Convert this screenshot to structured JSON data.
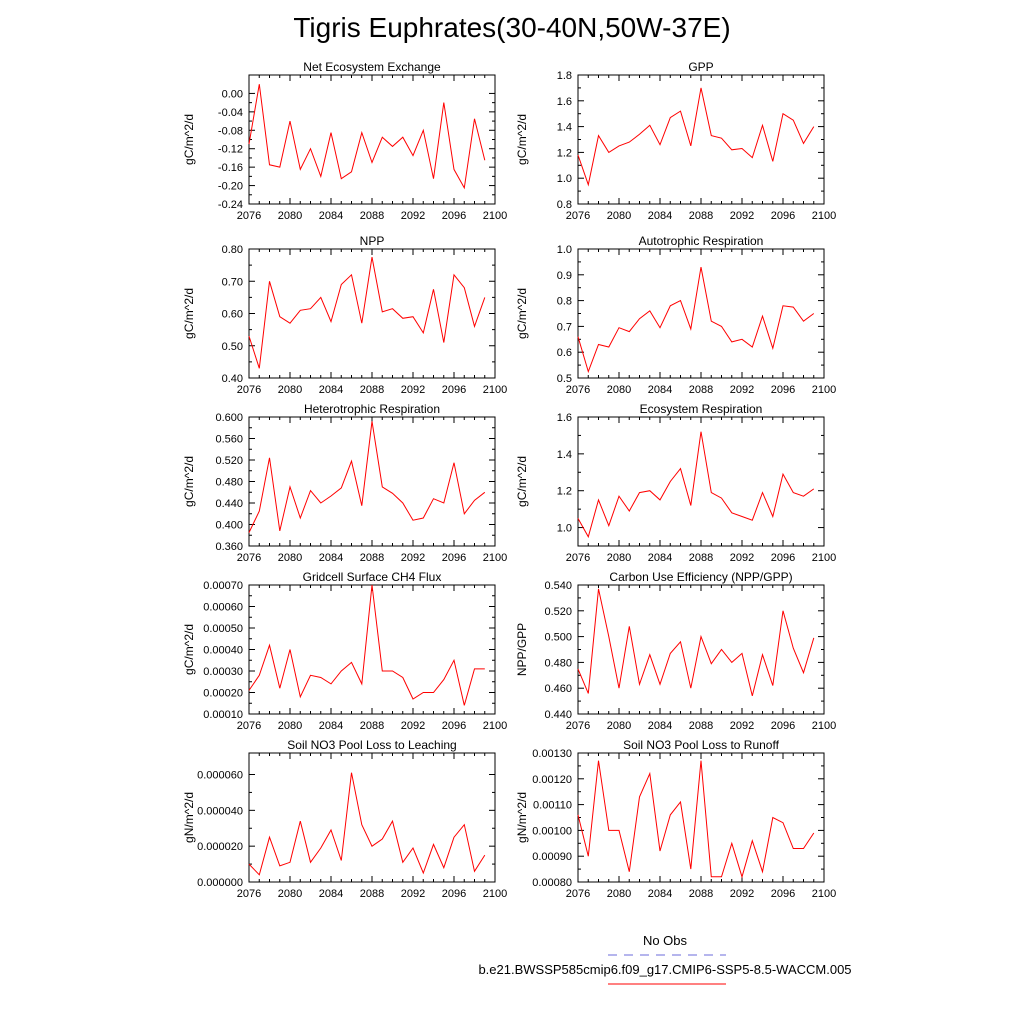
{
  "title": "Tigris Euphrates(30-40N,50W-37E)",
  "colors": {
    "series": "#ff0000",
    "obs": "#6b6bdb",
    "axis": "#000000"
  },
  "legend": {
    "obs_label": "No Obs",
    "model_label": "b.e21.BWSSP585cmip6.f09_g17.CMIP6-SSP5-8.5-WACCM.005"
  },
  "chart_data": [
    {
      "type": "line",
      "title": "Net Ecosystem Exchange",
      "ylabel": "gC/m^2/d",
      "xlim": [
        2076,
        2100
      ],
      "ylim": [
        -0.24,
        0.04
      ],
      "xticks": [
        "2076",
        "2080",
        "2084",
        "2088",
        "2092",
        "2096",
        "2100"
      ],
      "yticks": [
        "0.00",
        "-0.04",
        "-0.08",
        "-0.12",
        "-0.16",
        "-0.20",
        "-0.24"
      ],
      "x": [
        2076,
        2077,
        2078,
        2079,
        2080,
        2081,
        2082,
        2083,
        2084,
        2085,
        2086,
        2087,
        2088,
        2089,
        2090,
        2091,
        2092,
        2093,
        2094,
        2095,
        2096,
        2097,
        2098,
        2099
      ],
      "values": [
        -0.11,
        0.02,
        -0.155,
        -0.16,
        -0.06,
        -0.165,
        -0.12,
        -0.18,
        -0.085,
        -0.185,
        -0.17,
        -0.085,
        -0.15,
        -0.095,
        -0.115,
        -0.095,
        -0.135,
        -0.08,
        -0.185,
        -0.02,
        -0.165,
        -0.205,
        -0.055,
        -0.145
      ]
    },
    {
      "type": "line",
      "title": "GPP",
      "ylabel": "gC/m^2/d",
      "xlim": [
        2076,
        2100
      ],
      "ylim": [
        0.8,
        1.8
      ],
      "xticks": [
        "2076",
        "2080",
        "2084",
        "2088",
        "2092",
        "2096",
        "2100"
      ],
      "yticks": [
        "0.8",
        "1.0",
        "1.2",
        "1.4",
        "1.6",
        "1.8"
      ],
      "x": [
        2076,
        2077,
        2078,
        2079,
        2080,
        2081,
        2082,
        2083,
        2084,
        2085,
        2086,
        2087,
        2088,
        2089,
        2090,
        2091,
        2092,
        2093,
        2094,
        2095,
        2096,
        2097,
        2098,
        2099
      ],
      "values": [
        1.18,
        0.95,
        1.33,
        1.2,
        1.25,
        1.28,
        1.34,
        1.41,
        1.26,
        1.47,
        1.52,
        1.25,
        1.7,
        1.33,
        1.31,
        1.22,
        1.23,
        1.16,
        1.41,
        1.13,
        1.5,
        1.45,
        1.27,
        1.4
      ]
    },
    {
      "type": "line",
      "title": "NPP",
      "ylabel": "gC/m^2/d",
      "xlim": [
        2076,
        2100
      ],
      "ylim": [
        0.4,
        0.8
      ],
      "xticks": [
        "2076",
        "2080",
        "2084",
        "2088",
        "2092",
        "2096",
        "2100"
      ],
      "yticks": [
        "0.40",
        "0.50",
        "0.60",
        "0.70",
        "0.80"
      ],
      "x": [
        2076,
        2077,
        2078,
        2079,
        2080,
        2081,
        2082,
        2083,
        2084,
        2085,
        2086,
        2087,
        2088,
        2089,
        2090,
        2091,
        2092,
        2093,
        2094,
        2095,
        2096,
        2097,
        2098,
        2099
      ],
      "values": [
        0.53,
        0.43,
        0.7,
        0.59,
        0.57,
        0.61,
        0.615,
        0.65,
        0.575,
        0.69,
        0.72,
        0.57,
        0.775,
        0.605,
        0.615,
        0.585,
        0.59,
        0.54,
        0.675,
        0.51,
        0.72,
        0.68,
        0.56,
        0.65
      ]
    },
    {
      "type": "line",
      "title": "Autotrophic Respiration",
      "ylabel": "gC/m^2/d",
      "xlim": [
        2076,
        2100
      ],
      "ylim": [
        0.5,
        1.0
      ],
      "xticks": [
        "2076",
        "2080",
        "2084",
        "2088",
        "2092",
        "2096",
        "2100"
      ],
      "yticks": [
        "0.5",
        "0.6",
        "0.7",
        "0.8",
        "0.9",
        "1.0"
      ],
      "x": [
        2076,
        2077,
        2078,
        2079,
        2080,
        2081,
        2082,
        2083,
        2084,
        2085,
        2086,
        2087,
        2088,
        2089,
        2090,
        2091,
        2092,
        2093,
        2094,
        2095,
        2096,
        2097,
        2098,
        2099
      ],
      "values": [
        0.66,
        0.525,
        0.63,
        0.62,
        0.695,
        0.68,
        0.73,
        0.76,
        0.695,
        0.78,
        0.8,
        0.69,
        0.93,
        0.72,
        0.7,
        0.64,
        0.65,
        0.62,
        0.74,
        0.615,
        0.78,
        0.775,
        0.72,
        0.75
      ]
    },
    {
      "type": "line",
      "title": "Heterotrophic Respiration",
      "ylabel": "gC/m^2/d",
      "xlim": [
        2076,
        2100
      ],
      "ylim": [
        0.36,
        0.6
      ],
      "xticks": [
        "2076",
        "2080",
        "2084",
        "2088",
        "2092",
        "2096",
        "2100"
      ],
      "yticks": [
        "0.360",
        "0.400",
        "0.440",
        "0.480",
        "0.520",
        "0.560",
        "0.600"
      ],
      "x": [
        2076,
        2077,
        2078,
        2079,
        2080,
        2081,
        2082,
        2083,
        2084,
        2085,
        2086,
        2087,
        2088,
        2089,
        2090,
        2091,
        2092,
        2093,
        2094,
        2095,
        2096,
        2097,
        2098,
        2099
      ],
      "values": [
        0.385,
        0.425,
        0.524,
        0.388,
        0.47,
        0.412,
        0.463,
        0.44,
        0.453,
        0.468,
        0.518,
        0.435,
        0.592,
        0.47,
        0.458,
        0.44,
        0.408,
        0.412,
        0.448,
        0.44,
        0.515,
        0.42,
        0.445,
        0.46
      ]
    },
    {
      "type": "line",
      "title": "Ecosystem Respiration",
      "ylabel": "gC/m^2/d",
      "xlim": [
        2076,
        2100
      ],
      "ylim": [
        0.9,
        1.6
      ],
      "xticks": [
        "2076",
        "2080",
        "2084",
        "2088",
        "2092",
        "2096",
        "2100"
      ],
      "yticks": [
        "1.0",
        "1.2",
        "1.4",
        "1.6"
      ],
      "x": [
        2076,
        2077,
        2078,
        2079,
        2080,
        2081,
        2082,
        2083,
        2084,
        2085,
        2086,
        2087,
        2088,
        2089,
        2090,
        2091,
        2092,
        2093,
        2094,
        2095,
        2096,
        2097,
        2098,
        2099
      ],
      "values": [
        1.05,
        0.95,
        1.15,
        1.01,
        1.17,
        1.09,
        1.19,
        1.2,
        1.15,
        1.25,
        1.32,
        1.12,
        1.52,
        1.19,
        1.16,
        1.08,
        1.06,
        1.04,
        1.19,
        1.06,
        1.29,
        1.19,
        1.17,
        1.21
      ]
    },
    {
      "type": "line",
      "title": "Gridcell Surface CH4 Flux",
      "ylabel": "gC/m^2/d",
      "xlim": [
        2076,
        2100
      ],
      "ylim": [
        0.0001,
        0.0007
      ],
      "xticks": [
        "2076",
        "2080",
        "2084",
        "2088",
        "2092",
        "2096",
        "2100"
      ],
      "yticks": [
        "0.00010",
        "0.00020",
        "0.00030",
        "0.00040",
        "0.00050",
        "0.00060",
        "0.00070"
      ],
      "x": [
        2076,
        2077,
        2078,
        2079,
        2080,
        2081,
        2082,
        2083,
        2084,
        2085,
        2086,
        2087,
        2088,
        2089,
        2090,
        2091,
        2092,
        2093,
        2094,
        2095,
        2096,
        2097,
        2098,
        2099
      ],
      "values": [
        0.00021,
        0.00028,
        0.00042,
        0.00022,
        0.0004,
        0.00018,
        0.00028,
        0.00027,
        0.00024,
        0.0003,
        0.00034,
        0.00024,
        0.0007,
        0.0003,
        0.0003,
        0.00027,
        0.00017,
        0.0002,
        0.0002,
        0.00026,
        0.00035,
        0.00014,
        0.00031,
        0.00031
      ]
    },
    {
      "type": "line",
      "title": "Carbon Use Efficiency (NPP/GPP)",
      "ylabel": "NPP/GPP",
      "xlim": [
        2076,
        2100
      ],
      "ylim": [
        0.44,
        0.54
      ],
      "xticks": [
        "2076",
        "2080",
        "2084",
        "2088",
        "2092",
        "2096",
        "2100"
      ],
      "yticks": [
        "0.440",
        "0.460",
        "0.480",
        "0.500",
        "0.520",
        "0.540"
      ],
      "x": [
        2076,
        2077,
        2078,
        2079,
        2080,
        2081,
        2082,
        2083,
        2084,
        2085,
        2086,
        2087,
        2088,
        2089,
        2090,
        2091,
        2092,
        2093,
        2094,
        2095,
        2096,
        2097,
        2098,
        2099
      ],
      "values": [
        0.475,
        0.456,
        0.537,
        0.5,
        0.46,
        0.508,
        0.463,
        0.486,
        0.463,
        0.487,
        0.496,
        0.46,
        0.5,
        0.479,
        0.49,
        0.48,
        0.487,
        0.454,
        0.486,
        0.462,
        0.52,
        0.491,
        0.472,
        0.499
      ]
    },
    {
      "type": "line",
      "title": "Soil NO3 Pool Loss to Leaching",
      "ylabel": "gN/m^2/d",
      "xlim": [
        2076,
        2100
      ],
      "ylim": [
        0.0,
        7.2e-05
      ],
      "xticks": [
        "2076",
        "2080",
        "2084",
        "2088",
        "2092",
        "2096",
        "2100"
      ],
      "yticks": [
        "0.000000",
        "0.000020",
        "0.000040",
        "0.000060"
      ],
      "x": [
        2076,
        2077,
        2078,
        2079,
        2080,
        2081,
        2082,
        2083,
        2084,
        2085,
        2086,
        2087,
        2088,
        2089,
        2090,
        2091,
        2092,
        2093,
        2094,
        2095,
        2096,
        2097,
        2098,
        2099
      ],
      "values": [
        1e-05,
        4e-06,
        2.5e-05,
        9e-06,
        1.1e-05,
        3.4e-05,
        1.1e-05,
        1.9e-05,
        2.9e-05,
        1.2e-05,
        6.1e-05,
        3.2e-05,
        2e-05,
        2.4e-05,
        3.4e-05,
        1.1e-05,
        1.9e-05,
        5e-06,
        2.1e-05,
        8e-06,
        2.5e-05,
        3.2e-05,
        6e-06,
        1.5e-05
      ]
    },
    {
      "type": "line",
      "title": "Soil NO3 Pool Loss to Runoff",
      "ylabel": "gN/m^2/d",
      "xlim": [
        2076,
        2100
      ],
      "ylim": [
        0.0008,
        0.0013
      ],
      "xticks": [
        "2076",
        "2080",
        "2084",
        "2088",
        "2092",
        "2096",
        "2100"
      ],
      "yticks": [
        "0.00080",
        "0.00090",
        "0.00100",
        "0.00110",
        "0.00120",
        "0.00130"
      ],
      "x": [
        2076,
        2077,
        2078,
        2079,
        2080,
        2081,
        2082,
        2083,
        2084,
        2085,
        2086,
        2087,
        2088,
        2089,
        2090,
        2091,
        2092,
        2093,
        2094,
        2095,
        2096,
        2097,
        2098,
        2099
      ],
      "values": [
        0.00106,
        0.0009,
        0.00127,
        0.001,
        0.001,
        0.00084,
        0.00113,
        0.00122,
        0.00092,
        0.00106,
        0.00111,
        0.00085,
        0.00127,
        0.00082,
        0.00082,
        0.00095,
        0.00082,
        0.00096,
        0.00084,
        0.00105,
        0.00103,
        0.00093,
        0.00093,
        0.00099
      ]
    }
  ]
}
